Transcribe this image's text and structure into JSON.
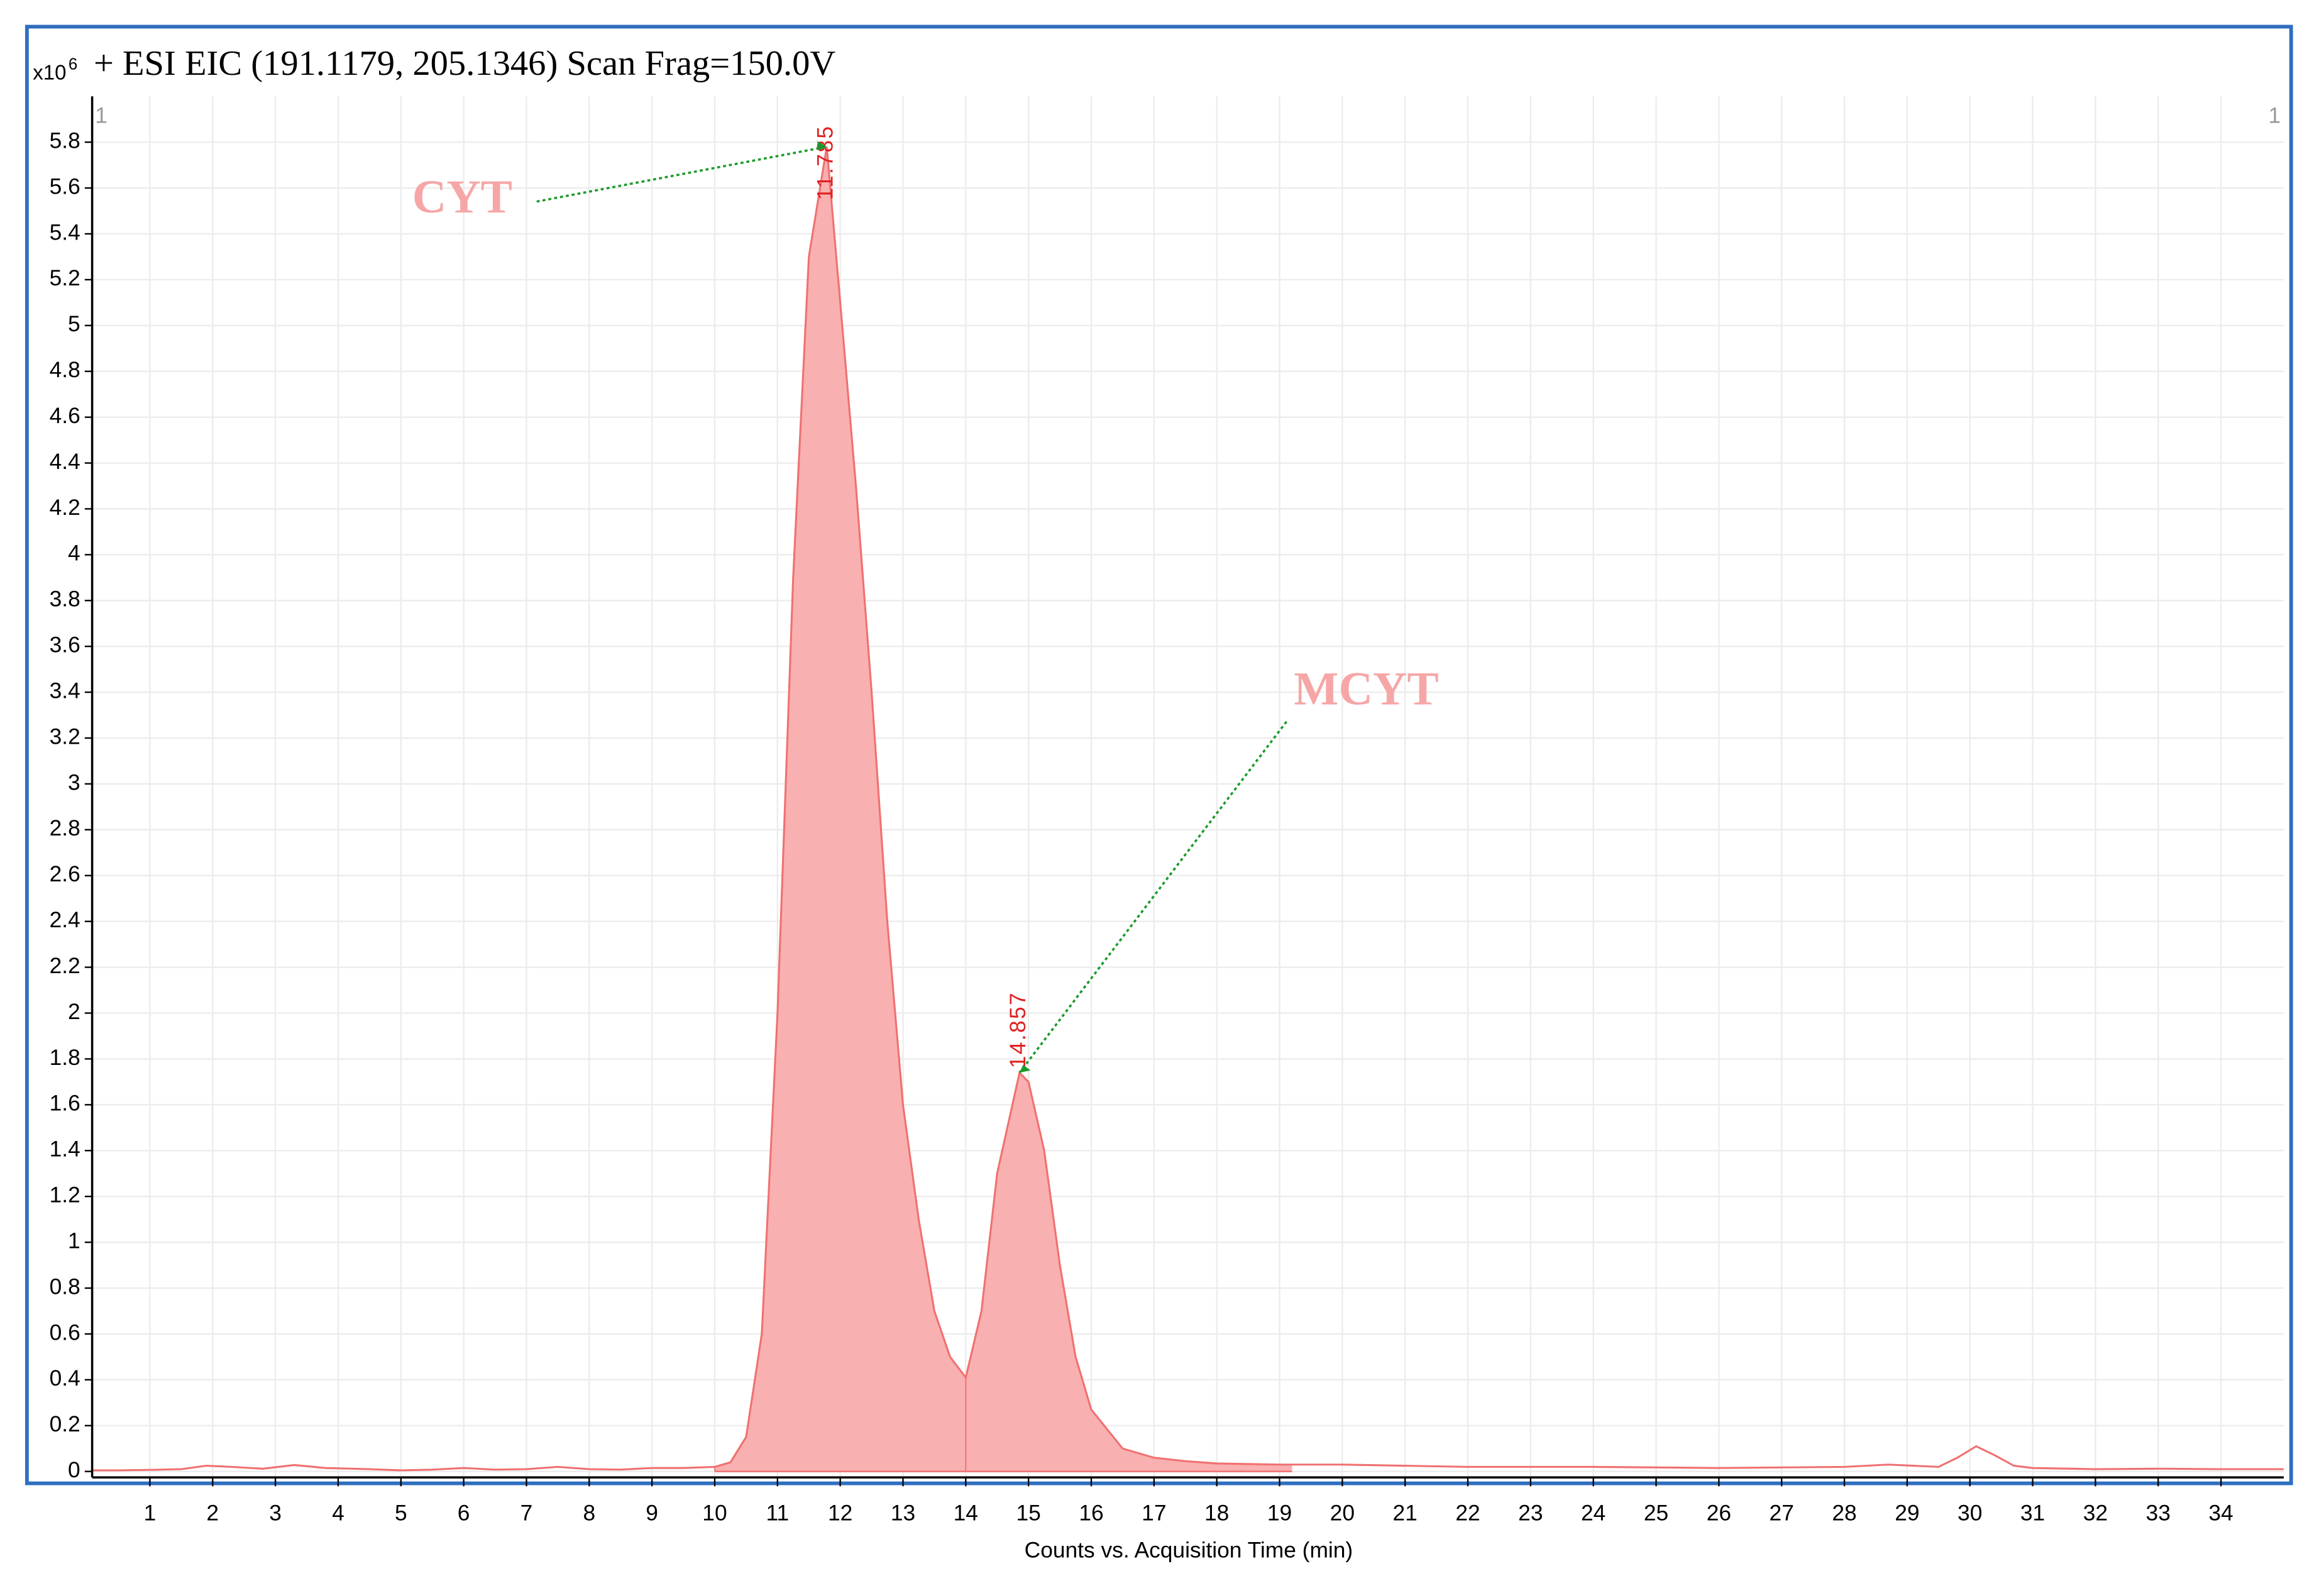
{
  "chart_data": {
    "type": "area",
    "title": "+ ESI EIC (191.1179, 205.1346) Scan Frag=150.0V",
    "y_scale_label": "x10",
    "y_scale_exponent": "6",
    "x_label": "Counts vs. Acquisition Time (min)",
    "corner_labels": [
      "1",
      "1"
    ],
    "x": [
      0.1,
      0.5,
      1.0,
      1.5,
      1.9,
      2.3,
      2.8,
      3.3,
      3.8,
      4.5,
      5,
      5.5,
      6,
      6.5,
      7,
      7.5,
      8,
      8.5,
      9,
      9.5,
      10,
      10.25,
      10.5,
      10.75,
      11,
      11.25,
      11.5,
      11.785,
      12,
      12.25,
      12.5,
      12.75,
      13,
      13.25,
      13.5,
      13.75,
      14,
      14.25,
      14.5,
      14.857,
      15,
      15.25,
      15.5,
      15.75,
      16,
      16.5,
      17,
      17.5,
      18,
      19,
      20,
      22,
      24,
      26,
      28,
      28.7,
      29.5,
      29.8,
      30.1,
      30.4,
      30.7,
      31,
      32,
      33,
      34,
      35
    ],
    "series": [
      {
        "name": "EIC",
        "color": "#f07070",
        "fill": "#f9b0b0",
        "values": [
          0.005,
          0.005,
          0.007,
          0.01,
          0.025,
          0.02,
          0.012,
          0.028,
          0.015,
          0.01,
          0.005,
          0.008,
          0.015,
          0.008,
          0.01,
          0.02,
          0.01,
          0.008,
          0.015,
          0.015,
          0.02,
          0.04,
          0.15,
          0.6,
          2.0,
          3.9,
          5.3,
          5.78,
          5.1,
          4.3,
          3.4,
          2.4,
          1.6,
          1.1,
          0.7,
          0.5,
          0.41,
          0.7,
          1.3,
          1.74,
          1.7,
          1.4,
          0.9,
          0.5,
          0.27,
          0.1,
          0.06,
          0.045,
          0.035,
          0.03,
          0.03,
          0.02,
          0.02,
          0.015,
          0.02,
          0.03,
          0.02,
          0.06,
          0.11,
          0.07,
          0.025,
          0.015,
          0.01,
          0.012,
          0.01,
          0.01
        ]
      }
    ],
    "peaks": [
      {
        "name": "CYT",
        "rt": 11.785,
        "start": 10.0,
        "end": 14.0
      },
      {
        "name": "MCYT",
        "rt": 14.857,
        "start": 14.0,
        "end": 19.2
      }
    ],
    "xlim": [
      0.08,
      35
    ],
    "ylim": [
      -0.026,
      6.0
    ],
    "xticks": [
      1,
      2,
      3,
      4,
      5,
      6,
      7,
      8,
      9,
      10,
      11,
      12,
      13,
      14,
      15,
      16,
      17,
      18,
      19,
      20,
      21,
      22,
      23,
      24,
      25,
      26,
      27,
      28,
      29,
      30,
      31,
      32,
      33,
      34
    ],
    "yticks": [
      0,
      0.2,
      0.4,
      0.6,
      0.8,
      1,
      1.2,
      1.4,
      1.6,
      1.8,
      2,
      2.2,
      2.4,
      2.6,
      2.8,
      3,
      3.2,
      3.4,
      3.6,
      3.8,
      4,
      4.2,
      4.4,
      4.6,
      4.8,
      5,
      5.2,
      5.4,
      5.6,
      5.8
    ],
    "grid": true
  }
}
